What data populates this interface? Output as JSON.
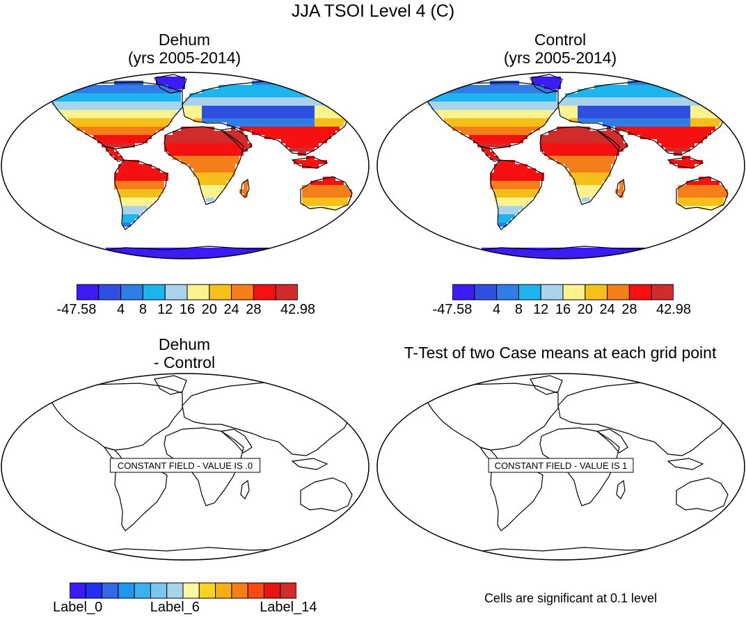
{
  "figure": {
    "title": "JJA TSOI Level 4 (C)"
  },
  "panels": [
    {
      "id": "dehum",
      "title_line1": "Dehum",
      "title_line2": "(yrs 2005-2014)",
      "field": "temperature"
    },
    {
      "id": "control",
      "title_line1": "Control",
      "title_line2": "(yrs 2005-2014)",
      "field": "temperature"
    },
    {
      "id": "difference",
      "title_line1": "Dehum",
      "title_line2": "- Control",
      "field": "constant",
      "message": "CONSTANT FIELD - VALUE IS .0"
    },
    {
      "id": "ttest",
      "title_line1": "T-Test of two Case means at each grid point",
      "title_line2": "",
      "field": "constant",
      "message": "CONSTANT FIELD - VALUE IS 1"
    }
  ],
  "colorbars": {
    "temperature": {
      "colors": [
        "#3b1cf5",
        "#2e4fe0",
        "#2f7ee8",
        "#1eb4ee",
        "#a9d3ea",
        "#fbf48e",
        "#f7bf1a",
        "#f57e1b",
        "#f71010",
        "#d12b2b"
      ],
      "labels": [
        "-47.58",
        "4",
        "8",
        "12",
        "16",
        "20",
        "24",
        "28",
        "42.98"
      ]
    },
    "difference": {
      "colors": [
        "#3b1cf5",
        "#2430f0",
        "#3368e6",
        "#2196ee",
        "#3ab2ee",
        "#79c6f0",
        "#a9d3ea",
        "#fcf5a3",
        "#f8d224",
        "#f5ad14",
        "#f57d19",
        "#f74a13",
        "#e81414",
        "#d12b2b"
      ],
      "labels": [
        "Label_0",
        "Label_6",
        "Label_14"
      ]
    }
  },
  "significance_note": "Cells are significant at 0.1 level"
}
